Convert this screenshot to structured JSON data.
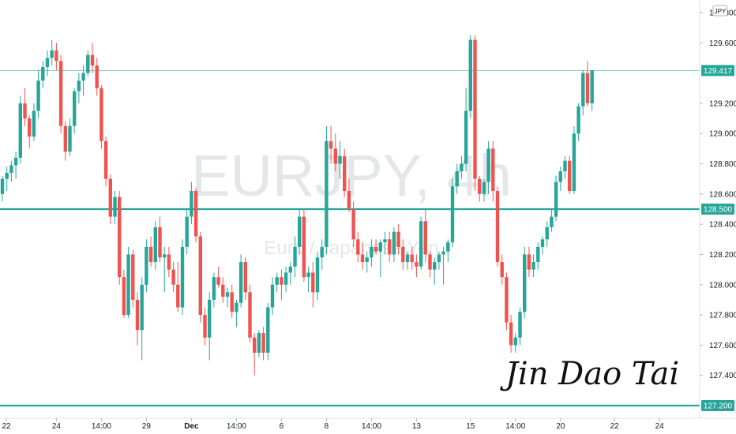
{
  "chart_data": {
    "type": "candlestick",
    "symbol_watermark": "EURJPY, 4h",
    "subtitle_watermark": "Euro / Japanese Yen",
    "currency_label": "JPY",
    "signature": "Jin Dao Tai",
    "colors": {
      "up": "#26a69a",
      "down": "#ef5350",
      "level": "#26a69a",
      "current": "#26a69a"
    },
    "y_ticks": [
      "127.400",
      "127.600",
      "127.800",
      "128.000",
      "128.200",
      "128.400",
      "128.600",
      "128.800",
      "129.000",
      "129.200",
      "129.600",
      "129.800"
    ],
    "ylim": [
      127.2,
      129.8
    ],
    "x_ticks": [
      {
        "label": "22",
        "i": 0
      },
      {
        "label": "24",
        "i": 12
      },
      {
        "label": "14:00",
        "i": 22
      },
      {
        "label": "29",
        "i": 32
      },
      {
        "label": "Dec",
        "i": 42
      },
      {
        "label": "14:00",
        "i": 52
      },
      {
        "label": "6",
        "i": 62
      },
      {
        "label": "8",
        "i": 72
      },
      {
        "label": "14:00",
        "i": 82
      },
      {
        "label": "13",
        "i": 92
      },
      {
        "label": "15",
        "i": 104
      },
      {
        "label": "14:00",
        "i": 114
      },
      {
        "label": "20",
        "i": 124
      },
      {
        "label": "22",
        "i": 136
      },
      {
        "label": "24",
        "i": 146
      }
    ],
    "horizontal_levels": [
      128.5,
      127.2
    ],
    "current_price": "129.417",
    "level_tags": [
      "128.500",
      "127.200"
    ],
    "candles": [
      [
        128.6,
        128.72,
        128.55,
        128.7
      ],
      [
        128.7,
        128.78,
        128.62,
        128.74
      ],
      [
        128.74,
        128.82,
        128.68,
        128.79
      ],
      [
        128.79,
        128.88,
        128.7,
        128.84
      ],
      [
        128.84,
        129.25,
        128.8,
        129.2
      ],
      [
        129.2,
        129.3,
        129.05,
        129.1
      ],
      [
        129.1,
        129.12,
        128.9,
        128.98
      ],
      [
        128.98,
        129.2,
        128.95,
        129.15
      ],
      [
        129.15,
        129.42,
        129.1,
        129.35
      ],
      [
        129.35,
        129.48,
        129.3,
        129.44
      ],
      [
        129.44,
        129.55,
        129.38,
        129.5
      ],
      [
        129.5,
        129.62,
        129.45,
        129.55
      ],
      [
        129.55,
        129.6,
        129.42,
        129.48
      ],
      [
        129.48,
        129.52,
        129.0,
        129.05
      ],
      [
        129.05,
        129.08,
        128.82,
        128.88
      ],
      [
        128.88,
        129.1,
        128.85,
        129.05
      ],
      [
        129.05,
        129.3,
        129.0,
        129.28
      ],
      [
        129.28,
        129.4,
        129.2,
        129.35
      ],
      [
        129.35,
        129.45,
        129.25,
        129.4
      ],
      [
        129.4,
        129.55,
        129.38,
        129.52
      ],
      [
        129.52,
        129.6,
        129.4,
        129.45
      ],
      [
        129.45,
        129.5,
        129.25,
        129.3
      ],
      [
        129.3,
        129.32,
        128.9,
        128.95
      ],
      [
        128.95,
        128.98,
        128.65,
        128.7
      ],
      [
        128.7,
        128.73,
        128.4,
        128.45
      ],
      [
        128.45,
        128.62,
        128.4,
        128.58
      ],
      [
        128.58,
        128.62,
        128.0,
        128.05
      ],
      [
        128.05,
        128.1,
        127.78,
        127.8
      ],
      [
        127.8,
        128.25,
        127.78,
        128.2
      ],
      [
        128.2,
        128.23,
        127.85,
        127.9
      ],
      [
        127.9,
        127.95,
        127.6,
        127.7
      ],
      [
        127.7,
        128.05,
        127.5,
        128.0
      ],
      [
        128.0,
        128.3,
        127.95,
        128.25
      ],
      [
        128.25,
        128.32,
        128.12,
        128.15
      ],
      [
        128.15,
        128.42,
        128.1,
        128.38
      ],
      [
        128.38,
        128.45,
        128.15,
        128.18
      ],
      [
        128.18,
        128.25,
        127.95,
        128.2
      ],
      [
        128.2,
        128.25,
        128.05,
        128.1
      ],
      [
        128.1,
        128.15,
        127.95,
        128.0
      ],
      [
        128.0,
        128.15,
        127.82,
        127.85
      ],
      [
        127.85,
        128.3,
        127.8,
        128.25
      ],
      [
        128.25,
        128.5,
        128.2,
        128.45
      ],
      [
        128.45,
        128.68,
        128.4,
        128.62
      ],
      [
        128.62,
        128.64,
        128.28,
        128.32
      ],
      [
        128.32,
        128.35,
        127.75,
        127.8
      ],
      [
        127.8,
        127.85,
        127.6,
        127.65
      ],
      [
        127.65,
        127.95,
        127.5,
        127.9
      ],
      [
        127.9,
        128.08,
        127.85,
        128.05
      ],
      [
        128.05,
        128.12,
        127.98,
        128.0
      ],
      [
        128.0,
        128.05,
        127.88,
        127.92
      ],
      [
        127.92,
        127.98,
        127.85,
        127.95
      ],
      [
        127.95,
        128.0,
        127.78,
        127.82
      ],
      [
        127.82,
        127.9,
        127.72,
        127.88
      ],
      [
        127.88,
        128.2,
        127.85,
        128.15
      ],
      [
        128.15,
        128.18,
        127.9,
        127.95
      ],
      [
        127.95,
        128.0,
        127.62,
        127.65
      ],
      [
        127.65,
        127.68,
        127.4,
        127.55
      ],
      [
        127.55,
        127.7,
        127.52,
        127.68
      ],
      [
        127.68,
        127.72,
        127.5,
        127.55
      ],
      [
        127.55,
        127.88,
        127.5,
        127.85
      ],
      [
        127.85,
        128.05,
        127.8,
        128.0
      ],
      [
        128.0,
        128.08,
        127.95,
        128.05
      ],
      [
        128.05,
        128.1,
        127.9,
        128.0
      ],
      [
        128.0,
        128.12,
        127.95,
        128.08
      ],
      [
        128.08,
        128.15,
        128.0,
        128.12
      ],
      [
        128.12,
        128.32,
        128.05,
        128.25
      ],
      [
        128.25,
        128.5,
        128.2,
        128.45
      ],
      [
        128.45,
        128.5,
        128.02,
        128.05
      ],
      [
        128.05,
        128.12,
        127.95,
        128.08
      ],
      [
        128.08,
        128.15,
        127.85,
        127.95
      ],
      [
        127.95,
        128.22,
        127.9,
        128.18
      ],
      [
        128.18,
        128.3,
        128.1,
        128.25
      ],
      [
        128.25,
        129.05,
        128.2,
        128.95
      ],
      [
        128.95,
        129.05,
        128.8,
        128.9
      ],
      [
        128.9,
        129.0,
        128.75,
        128.8
      ],
      [
        128.8,
        128.95,
        128.7,
        128.85
      ],
      [
        128.85,
        128.9,
        128.58,
        128.62
      ],
      [
        128.62,
        128.7,
        128.48,
        128.5
      ],
      [
        128.5,
        128.55,
        128.25,
        128.3
      ],
      [
        128.3,
        128.35,
        128.15,
        128.2
      ],
      [
        128.2,
        128.28,
        128.1,
        128.15
      ],
      [
        128.15,
        128.22,
        128.08,
        128.18
      ],
      [
        128.18,
        128.3,
        128.12,
        128.25
      ],
      [
        128.25,
        128.3,
        128.2,
        128.22
      ],
      [
        128.22,
        128.3,
        128.05,
        128.28
      ],
      [
        128.28,
        128.35,
        128.2,
        128.3
      ],
      [
        128.3,
        128.35,
        128.15,
        128.2
      ],
      [
        128.2,
        128.38,
        128.15,
        128.35
      ],
      [
        128.35,
        128.4,
        128.2,
        128.25
      ],
      [
        128.25,
        128.3,
        128.1,
        128.15
      ],
      [
        128.15,
        128.22,
        128.1,
        128.2
      ],
      [
        128.2,
        128.25,
        128.1,
        128.15
      ],
      [
        128.15,
        128.2,
        128.05,
        128.12
      ],
      [
        128.12,
        128.45,
        128.1,
        128.42
      ],
      [
        128.42,
        128.5,
        128.15,
        128.2
      ],
      [
        128.2,
        128.22,
        128.05,
        128.1
      ],
      [
        128.1,
        128.18,
        128.0,
        128.15
      ],
      [
        128.15,
        128.22,
        128.1,
        128.2
      ],
      [
        128.2,
        128.25,
        128.0,
        128.22
      ],
      [
        128.22,
        128.3,
        128.15,
        128.28
      ],
      [
        128.28,
        128.7,
        128.25,
        128.65
      ],
      [
        128.65,
        128.8,
        128.6,
        128.75
      ],
      [
        128.75,
        128.85,
        128.7,
        128.8
      ],
      [
        128.8,
        129.3,
        128.75,
        129.15
      ],
      [
        129.15,
        129.65,
        129.1,
        129.62
      ],
      [
        129.62,
        129.65,
        128.62,
        128.7
      ],
      [
        128.7,
        128.72,
        128.55,
        128.6
      ],
      [
        128.6,
        128.7,
        128.55,
        128.68
      ],
      [
        128.68,
        128.95,
        128.6,
        128.9
      ],
      [
        128.9,
        128.95,
        128.55,
        128.62
      ],
      [
        128.62,
        128.65,
        128.12,
        128.15
      ],
      [
        128.15,
        128.2,
        128.0,
        128.05
      ],
      [
        128.05,
        128.08,
        127.7,
        127.75
      ],
      [
        127.75,
        127.8,
        127.55,
        127.6
      ],
      [
        127.6,
        127.68,
        127.55,
        127.65
      ],
      [
        127.65,
        127.85,
        127.6,
        127.82
      ],
      [
        127.82,
        128.25,
        127.78,
        128.2
      ],
      [
        128.2,
        128.25,
        128.05,
        128.1
      ],
      [
        128.1,
        128.2,
        128.05,
        128.15
      ],
      [
        128.15,
        128.28,
        128.1,
        128.25
      ],
      [
        128.25,
        128.32,
        128.2,
        128.3
      ],
      [
        128.3,
        128.42,
        128.25,
        128.38
      ],
      [
        128.38,
        128.5,
        128.35,
        128.45
      ],
      [
        128.45,
        128.72,
        128.42,
        128.68
      ],
      [
        128.68,
        128.78,
        128.62,
        128.75
      ],
      [
        128.75,
        128.85,
        128.7,
        128.82
      ],
      [
        128.82,
        128.85,
        128.6,
        128.62
      ],
      [
        128.62,
        129.05,
        128.6,
        129.0
      ],
      [
        129.0,
        129.2,
        128.95,
        129.18
      ],
      [
        129.18,
        129.42,
        129.12,
        129.4
      ],
      [
        129.4,
        129.48,
        129.18,
        129.2
      ],
      [
        129.2,
        129.42,
        129.15,
        129.417
      ]
    ]
  }
}
